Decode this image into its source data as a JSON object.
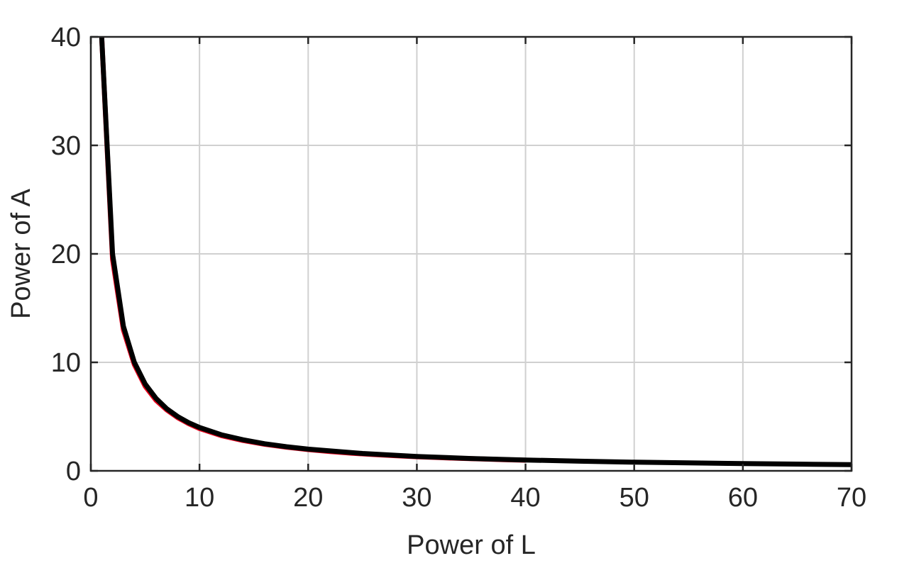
{
  "chart_data": {
    "type": "line",
    "xlabel": "Power of L",
    "ylabel": "Power of A",
    "xlim": [
      0,
      70
    ],
    "ylim": [
      0,
      40
    ],
    "xticks": [
      0,
      10,
      20,
      30,
      40,
      50,
      60,
      70
    ],
    "yticks": [
      0,
      10,
      20,
      30,
      40
    ],
    "xtick_labels": [
      "0",
      "10",
      "20",
      "30",
      "40",
      "50",
      "60",
      "70"
    ],
    "ytick_labels": [
      "0",
      "10",
      "20",
      "30",
      "40"
    ],
    "grid": true,
    "series": [
      {
        "color": "#e8001c",
        "x": [
          1,
          2,
          3,
          4,
          5,
          6,
          7,
          8,
          9,
          10,
          12,
          14,
          16,
          18,
          20,
          22,
          24,
          26,
          28,
          30,
          32,
          34,
          36,
          38,
          40
        ],
        "y": [
          40,
          19.5,
          13.0,
          9.8,
          7.8,
          6.5,
          5.6,
          4.9,
          4.35,
          3.9,
          3.25,
          2.8,
          2.45,
          2.18,
          1.96,
          1.78,
          1.63,
          1.5,
          1.4,
          1.3,
          1.22,
          1.15,
          1.09,
          1.03,
          0.98
        ]
      },
      {
        "color": "#000000",
        "x": [
          1,
          2,
          3,
          4,
          5,
          6,
          7,
          8,
          9,
          10,
          12,
          14,
          16,
          18,
          20,
          25,
          30,
          35,
          40,
          45,
          50,
          55,
          60,
          65,
          70
        ],
        "y": [
          40,
          20.0,
          13.33,
          10.0,
          8.0,
          6.67,
          5.71,
          5.0,
          4.44,
          4.0,
          3.33,
          2.86,
          2.5,
          2.22,
          2.0,
          1.6,
          1.33,
          1.14,
          1.0,
          0.89,
          0.8,
          0.73,
          0.67,
          0.62,
          0.57
        ]
      }
    ]
  }
}
